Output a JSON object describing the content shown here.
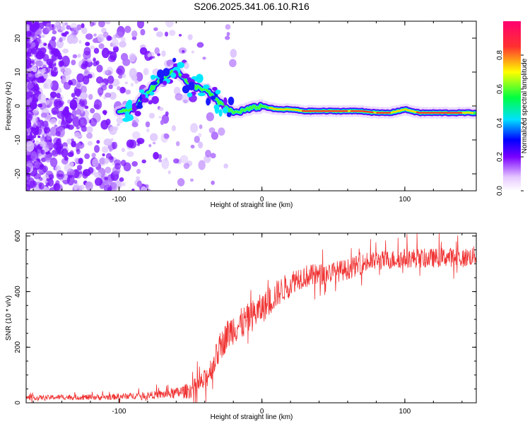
{
  "title": "S206.2025.341.06.10.R16",
  "chart_data": [
    {
      "type": "heatmap",
      "xlabel": "Height of straight line (km)",
      "ylabel": "Frequency (Hz)",
      "xlim": [
        -165,
        150
      ],
      "ylim": [
        -25,
        25
      ],
      "xticks": [
        "-100",
        "0",
        "100"
      ],
      "yticks": [
        "-20",
        "-10",
        "0",
        "10",
        "20"
      ],
      "colorbar": {
        "label": "Normalized spectral amplitude",
        "range": [
          0,
          1
        ],
        "ticks": [
          "0.0",
          "0.2",
          "0.4",
          "0.6",
          "0.8"
        ]
      },
      "ridge": {
        "x": [
          -165,
          -140,
          -120,
          -100,
          -90,
          -80,
          -70,
          -60,
          -50,
          -40,
          -30,
          -20,
          -10,
          0,
          10,
          20,
          30,
          40,
          50,
          60,
          70,
          80,
          90,
          100,
          110,
          120,
          130,
          140,
          150
        ],
        "y": [
          -8,
          -6,
          -4,
          -2,
          -1,
          4,
          8,
          11,
          6,
          5,
          1,
          -2,
          -1,
          0,
          -1,
          -1,
          -1.5,
          -1.5,
          -1.5,
          -1.5,
          -1.5,
          -2,
          -2,
          -1,
          -2,
          -2,
          -2,
          -2,
          -2
        ]
      }
    },
    {
      "type": "line",
      "xlabel": "Height of straight line (km)",
      "ylabel": "SNR (10 * v/v)",
      "xlim": [
        -165,
        150
      ],
      "ylim": [
        0,
        610
      ],
      "xticks": [
        "-100",
        "0",
        "100"
      ],
      "yticks": [
        "0",
        "200",
        "400",
        "600"
      ],
      "color": "#f03333",
      "trend": {
        "x": [
          -165,
          -140,
          -110,
          -90,
          -70,
          -60,
          -50,
          -40,
          -35,
          -30,
          -25,
          -20,
          -15,
          -10,
          -5,
          0,
          5,
          10,
          15,
          20,
          25,
          30,
          40,
          50,
          60,
          70,
          80,
          90,
          100,
          110,
          120,
          130,
          140,
          150
        ],
        "y": [
          18,
          20,
          20,
          25,
          30,
          35,
          45,
          80,
          130,
          190,
          240,
          270,
          280,
          300,
          320,
          340,
          360,
          390,
          410,
          430,
          450,
          455,
          460,
          470,
          480,
          500,
          510,
          515,
          520,
          520,
          520,
          525,
          520,
          530
        ]
      },
      "noise": {
        "x": [
          -165,
          -80,
          -60,
          -40,
          -20,
          0,
          20,
          40,
          60,
          80,
          100,
          150
        ],
        "amplitude": [
          8,
          12,
          20,
          40,
          60,
          55,
          45,
          40,
          38,
          35,
          35,
          35
        ]
      }
    }
  ]
}
